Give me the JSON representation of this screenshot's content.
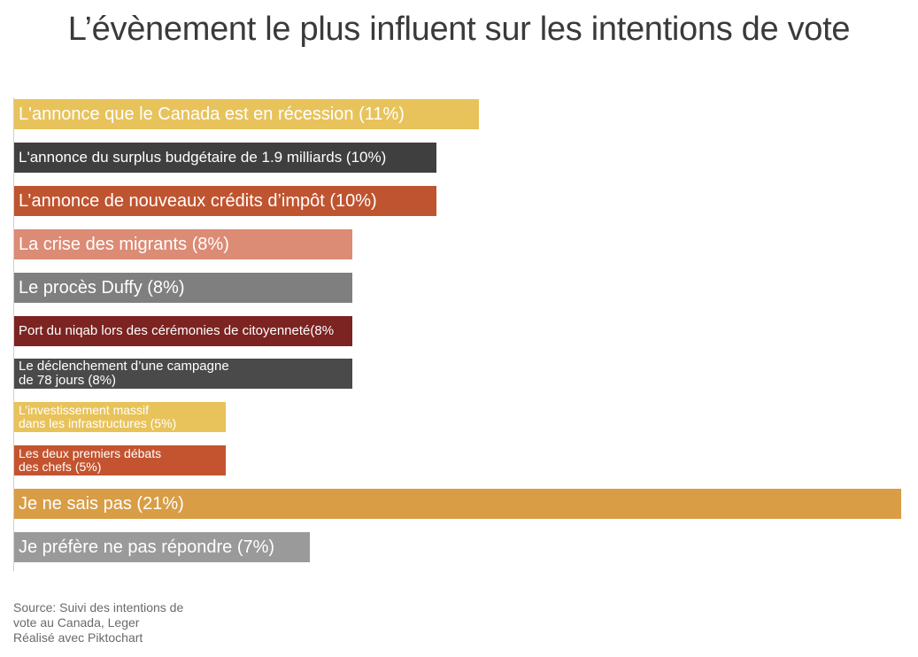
{
  "title": "L’évènement le plus influent sur les intentions de vote",
  "chart_data": {
    "type": "bar",
    "orientation": "horizontal",
    "title": "L’évènement le plus influent sur les intentions de vote",
    "xlabel": "",
    "ylabel": "",
    "unit": "%",
    "xlim": [
      0,
      21
    ],
    "grid": false,
    "categories": [
      "L'annonce que le Canada est en récession (11%)",
      "L'annonce du surplus budgétaire de 1.9 milliards (10%)",
      "L’annonce de nouveaux crédits d’impôt (10%)",
      "La crise des migrants (8%)",
      "Le procès Duffy (8%)",
      "Port du niqab lors des cérémonies de citoyenneté(8%",
      "Le déclenchement d’une campagne\nde 78 jours (8%)",
      "L’investissement massif\ndans les infrastructures (5%)",
      "Les deux premiers débats\ndes chefs (5%)",
      "Je ne sais pas (21%)",
      "Je préfère ne pas répondre (7%)"
    ],
    "values": [
      11,
      10,
      10,
      8,
      8,
      8,
      8,
      5,
      5,
      21,
      7
    ],
    "colors": [
      "#e8c35b",
      "#3f3f3f",
      "#bf5430",
      "#dc8b75",
      "#7f7f7f",
      "#7b2421",
      "#4a4a4a",
      "#e8c35b",
      "#c3542f",
      "#d89d45",
      "#9a9a9a"
    ]
  },
  "source_lines": [
    "Source: Suivi des intentions de",
    "vote au Canada, Leger",
    "Réalisé avec Piktochart"
  ]
}
